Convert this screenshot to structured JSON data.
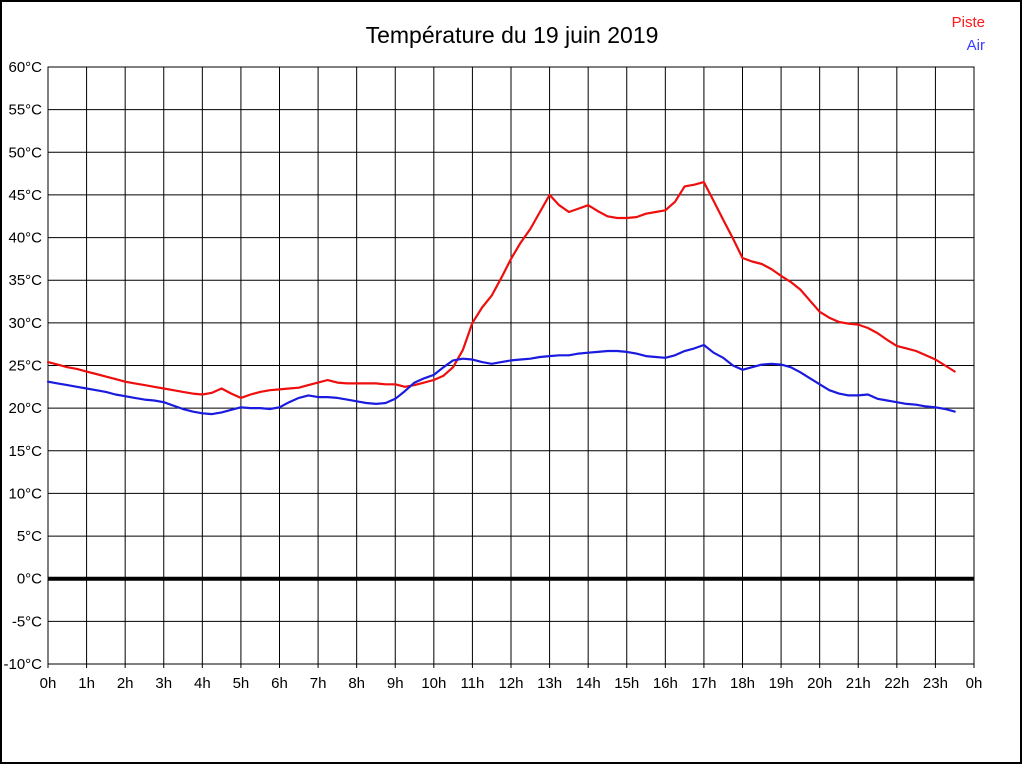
{
  "page": {
    "title": "Température du 19 juin 2019"
  },
  "legend": {
    "items": [
      {
        "label": "Piste",
        "color": "#fb1919"
      },
      {
        "label": "Air",
        "color": "#3c3cff"
      }
    ]
  },
  "chart_data": {
    "type": "line",
    "title": "Température du 19 juin 2019",
    "xlabel": "",
    "ylabel": "",
    "x_range_hours": [
      0,
      24
    ],
    "x_tick_labels": [
      "0h",
      "1h",
      "2h",
      "3h",
      "4h",
      "5h",
      "6h",
      "7h",
      "8h",
      "9h",
      "10h",
      "11h",
      "12h",
      "13h",
      "14h",
      "15h",
      "16h",
      "17h",
      "18h",
      "19h",
      "20h",
      "21h",
      "22h",
      "23h",
      "0h"
    ],
    "ylim": [
      -10,
      60
    ],
    "ytick_step": 5,
    "y_tick_labels": [
      "60°C",
      "55°C",
      "50°C",
      "45°C",
      "40°C",
      "35°C",
      "30°C",
      "25°C",
      "20°C",
      "15°C",
      "10°C",
      "5°C",
      "0°C",
      "-5°C",
      "-10°C"
    ],
    "y_tick_values": [
      60,
      55,
      50,
      45,
      40,
      35,
      30,
      25,
      20,
      15,
      10,
      5,
      0,
      -5,
      -10
    ],
    "grid": true,
    "zero_line_bold": true,
    "legend_position": "top-right",
    "axis_color": "#000000",
    "series": [
      {
        "name": "Piste",
        "color": "#ee0e0e",
        "points": [
          [
            0,
            25.4
          ],
          [
            0.25,
            25.1
          ],
          [
            0.5,
            24.8
          ],
          [
            0.75,
            24.6
          ],
          [
            1,
            24.3
          ],
          [
            1.25,
            24.0
          ],
          [
            1.5,
            23.7
          ],
          [
            1.75,
            23.4
          ],
          [
            2,
            23.1
          ],
          [
            2.25,
            22.9
          ],
          [
            2.5,
            22.7
          ],
          [
            2.75,
            22.5
          ],
          [
            3,
            22.3
          ],
          [
            3.25,
            22.1
          ],
          [
            3.5,
            21.9
          ],
          [
            3.75,
            21.7
          ],
          [
            4,
            21.6
          ],
          [
            4.25,
            21.8
          ],
          [
            4.5,
            22.3
          ],
          [
            4.75,
            21.7
          ],
          [
            5,
            21.2
          ],
          [
            5.25,
            21.6
          ],
          [
            5.5,
            21.9
          ],
          [
            5.75,
            22.1
          ],
          [
            6,
            22.2
          ],
          [
            6.25,
            22.3
          ],
          [
            6.5,
            22.4
          ],
          [
            6.75,
            22.7
          ],
          [
            7,
            23.0
          ],
          [
            7.25,
            23.3
          ],
          [
            7.5,
            23.0
          ],
          [
            7.75,
            22.9
          ],
          [
            8,
            22.9
          ],
          [
            8.25,
            22.9
          ],
          [
            8.5,
            22.9
          ],
          [
            8.75,
            22.8
          ],
          [
            9,
            22.8
          ],
          [
            9.25,
            22.5
          ],
          [
            9.5,
            22.7
          ],
          [
            9.75,
            23.0
          ],
          [
            10,
            23.3
          ],
          [
            10.25,
            23.8
          ],
          [
            10.5,
            24.8
          ],
          [
            10.75,
            26.8
          ],
          [
            11,
            30.0
          ],
          [
            11.25,
            31.8
          ],
          [
            11.5,
            33.2
          ],
          [
            11.75,
            35.3
          ],
          [
            12,
            37.5
          ],
          [
            12.25,
            39.4
          ],
          [
            12.5,
            41.0
          ],
          [
            12.75,
            43.0
          ],
          [
            13,
            45.0
          ],
          [
            13.25,
            43.8
          ],
          [
            13.5,
            43.0
          ],
          [
            13.75,
            43.4
          ],
          [
            14,
            43.8
          ],
          [
            14.25,
            43.1
          ],
          [
            14.5,
            42.5
          ],
          [
            14.75,
            42.3
          ],
          [
            15,
            42.3
          ],
          [
            15.25,
            42.4
          ],
          [
            15.5,
            42.8
          ],
          [
            15.75,
            43.0
          ],
          [
            16,
            43.2
          ],
          [
            16.25,
            44.2
          ],
          [
            16.5,
            46.0
          ],
          [
            16.75,
            46.2
          ],
          [
            17,
            46.5
          ],
          [
            17.25,
            44.3
          ],
          [
            17.5,
            42.1
          ],
          [
            17.75,
            39.9
          ],
          [
            18,
            37.6
          ],
          [
            18.25,
            37.2
          ],
          [
            18.5,
            36.9
          ],
          [
            18.75,
            36.3
          ],
          [
            19,
            35.5
          ],
          [
            19.25,
            34.8
          ],
          [
            19.5,
            33.9
          ],
          [
            19.75,
            32.6
          ],
          [
            20,
            31.3
          ],
          [
            20.25,
            30.6
          ],
          [
            20.5,
            30.1
          ],
          [
            20.75,
            29.9
          ],
          [
            21,
            29.8
          ],
          [
            21.25,
            29.4
          ],
          [
            21.5,
            28.8
          ],
          [
            21.75,
            28.0
          ],
          [
            22,
            27.3
          ],
          [
            22.25,
            27.0
          ],
          [
            22.5,
            26.7
          ],
          [
            22.75,
            26.2
          ],
          [
            23,
            25.7
          ],
          [
            23.25,
            25.0
          ],
          [
            23.5,
            24.3
          ]
        ]
      },
      {
        "name": "Air",
        "color": "#1b1bdf",
        "points": [
          [
            0,
            23.1
          ],
          [
            0.25,
            22.9
          ],
          [
            0.5,
            22.7
          ],
          [
            0.75,
            22.5
          ],
          [
            1,
            22.3
          ],
          [
            1.25,
            22.1
          ],
          [
            1.5,
            21.9
          ],
          [
            1.75,
            21.6
          ],
          [
            2,
            21.4
          ],
          [
            2.25,
            21.2
          ],
          [
            2.5,
            21.0
          ],
          [
            2.75,
            20.9
          ],
          [
            3,
            20.7
          ],
          [
            3.25,
            20.3
          ],
          [
            3.5,
            19.9
          ],
          [
            3.75,
            19.6
          ],
          [
            4,
            19.4
          ],
          [
            4.25,
            19.3
          ],
          [
            4.5,
            19.5
          ],
          [
            4.75,
            19.8
          ],
          [
            5,
            20.1
          ],
          [
            5.25,
            20.0
          ],
          [
            5.5,
            20.0
          ],
          [
            5.75,
            19.9
          ],
          [
            6,
            20.1
          ],
          [
            6.25,
            20.7
          ],
          [
            6.5,
            21.2
          ],
          [
            6.75,
            21.5
          ],
          [
            7,
            21.3
          ],
          [
            7.25,
            21.3
          ],
          [
            7.5,
            21.2
          ],
          [
            7.75,
            21.0
          ],
          [
            8,
            20.8
          ],
          [
            8.25,
            20.6
          ],
          [
            8.5,
            20.5
          ],
          [
            8.75,
            20.6
          ],
          [
            9,
            21.1
          ],
          [
            9.25,
            22.0
          ],
          [
            9.5,
            23.0
          ],
          [
            9.75,
            23.5
          ],
          [
            10,
            23.9
          ],
          [
            10.25,
            24.8
          ],
          [
            10.5,
            25.6
          ],
          [
            10.75,
            25.8
          ],
          [
            11,
            25.7
          ],
          [
            11.25,
            25.4
          ],
          [
            11.5,
            25.2
          ],
          [
            11.75,
            25.4
          ],
          [
            12,
            25.6
          ],
          [
            12.25,
            25.7
          ],
          [
            12.5,
            25.8
          ],
          [
            12.75,
            26.0
          ],
          [
            13,
            26.1
          ],
          [
            13.25,
            26.2
          ],
          [
            13.5,
            26.2
          ],
          [
            13.75,
            26.4
          ],
          [
            14,
            26.5
          ],
          [
            14.25,
            26.6
          ],
          [
            14.5,
            26.7
          ],
          [
            14.75,
            26.7
          ],
          [
            15,
            26.6
          ],
          [
            15.25,
            26.4
          ],
          [
            15.5,
            26.1
          ],
          [
            15.75,
            26.0
          ],
          [
            16,
            25.9
          ],
          [
            16.25,
            26.2
          ],
          [
            16.5,
            26.7
          ],
          [
            16.75,
            27.0
          ],
          [
            17,
            27.4
          ],
          [
            17.25,
            26.5
          ],
          [
            17.5,
            25.9
          ],
          [
            17.75,
            25.0
          ],
          [
            18,
            24.5
          ],
          [
            18.25,
            24.8
          ],
          [
            18.5,
            25.1
          ],
          [
            18.75,
            25.2
          ],
          [
            19,
            25.1
          ],
          [
            19.25,
            24.8
          ],
          [
            19.5,
            24.2
          ],
          [
            19.75,
            23.5
          ],
          [
            20,
            22.8
          ],
          [
            20.25,
            22.1
          ],
          [
            20.5,
            21.7
          ],
          [
            20.75,
            21.5
          ],
          [
            21,
            21.5
          ],
          [
            21.25,
            21.6
          ],
          [
            21.5,
            21.1
          ],
          [
            21.75,
            20.9
          ],
          [
            22,
            20.7
          ],
          [
            22.25,
            20.5
          ],
          [
            22.5,
            20.4
          ],
          [
            22.75,
            20.2
          ],
          [
            23,
            20.1
          ],
          [
            23.25,
            19.9
          ],
          [
            23.5,
            19.6
          ]
        ]
      }
    ]
  }
}
